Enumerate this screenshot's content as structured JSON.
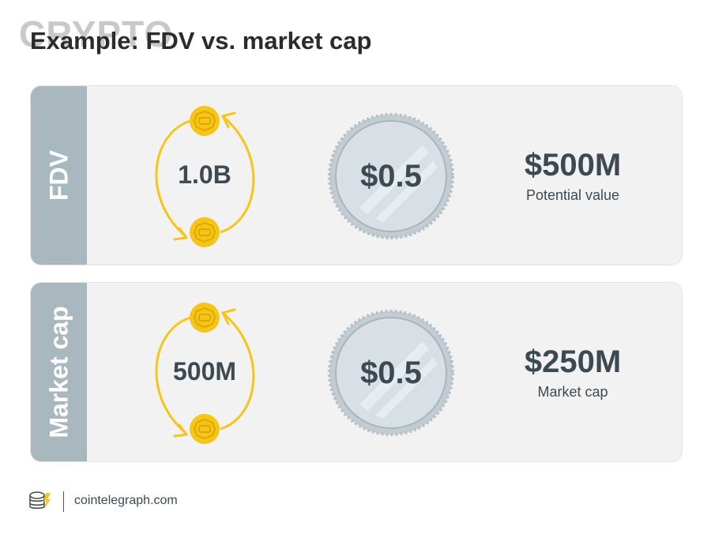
{
  "header": {
    "watermark": "CRYPTO",
    "title": "Example: FDV vs. market cap"
  },
  "panels": [
    {
      "side_label": "FDV",
      "supply": "1.0B",
      "price": "$0.5",
      "value": "$500M",
      "caption": "Potential value"
    },
    {
      "side_label": "Market cap",
      "supply": "500M",
      "price": "$0.5",
      "value": "$250M",
      "caption": "Market cap"
    }
  ],
  "footer": {
    "domain": "cointelegraph.com"
  },
  "colors": {
    "panel_bg": "#f2f2f2",
    "side_bar": "#a9b7bf",
    "coin_gold": "#f5c518",
    "coin_silver": "#c3ccd2",
    "text_dark": "#3d4a52"
  }
}
